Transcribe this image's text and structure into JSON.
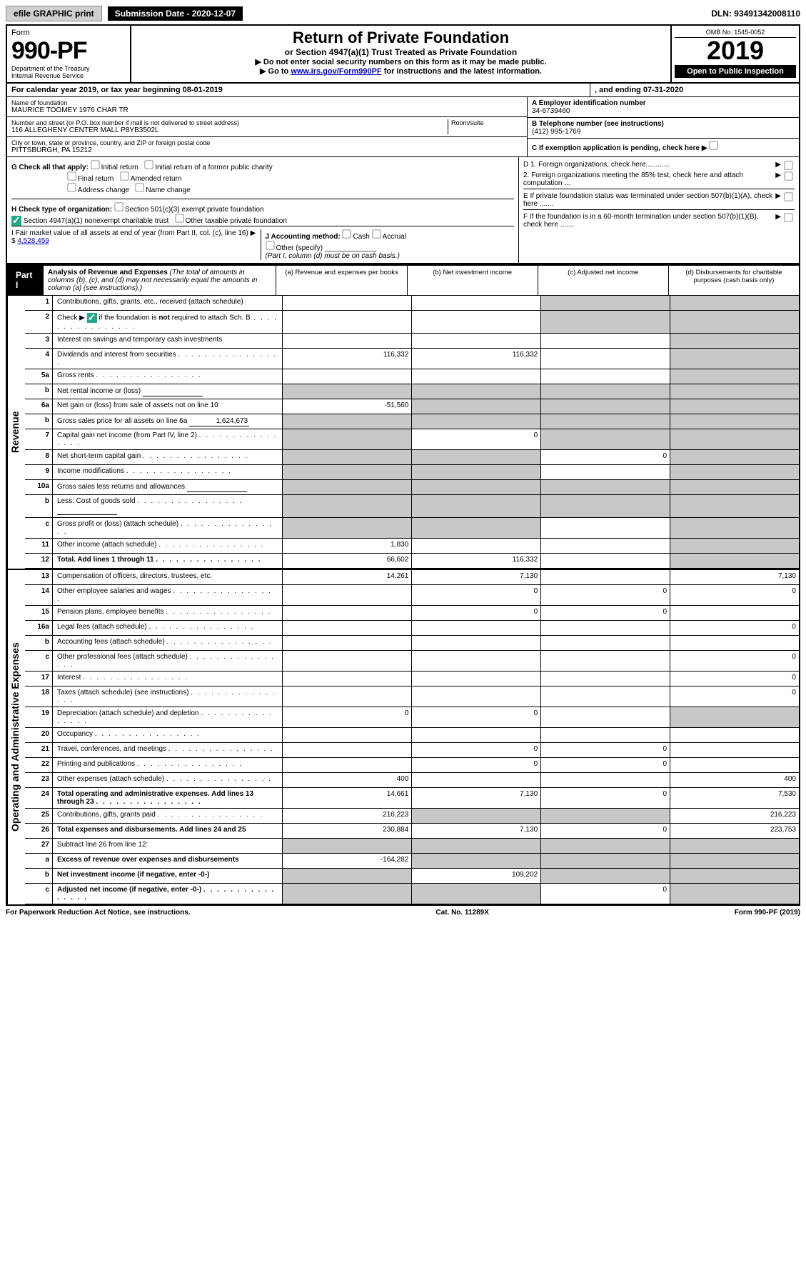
{
  "topbar": {
    "efile": "efile GRAPHIC print",
    "submission": "Submission Date - 2020-12-07",
    "dln": "DLN: 93491342008110"
  },
  "header": {
    "form_word": "Form",
    "form_num": "990-PF",
    "dept": "Department of the Treasury",
    "irs": "Internal Revenue Service",
    "title": "Return of Private Foundation",
    "subtitle": "or Section 4947(a)(1) Trust Treated as Private Foundation",
    "instr1": "▶ Do not enter social security numbers on this form as it may be made public.",
    "instr2_pre": "▶ Go to ",
    "instr2_link": "www.irs.gov/Form990PF",
    "instr2_post": " for instructions and the latest information.",
    "omb": "OMB No. 1545-0052",
    "year": "2019",
    "open": "Open to Public Inspection"
  },
  "calyear": {
    "text": "For calendar year 2019, or tax year beginning 08-01-2019",
    "end": ", and ending 07-31-2020"
  },
  "entity": {
    "name_label": "Name of foundation",
    "name": "MAURICE TOOMEY 1976 CHAR TR",
    "addr_label": "Number and street (or P.O. box number if mail is not delivered to street address)",
    "addr": "116 ALLEGHENY CENTER MALL P8YB3502L",
    "room_label": "Room/suite",
    "city_label": "City or town, state or province, country, and ZIP or foreign postal code",
    "city": "PITTSBURGH, PA 15212",
    "a_label": "A Employer identification number",
    "a_val": "34-6739460",
    "b_label": "B Telephone number (see instructions)",
    "b_val": "(412) 995-1769",
    "c_label": "C If exemption application is pending, check here ▶"
  },
  "checks": {
    "g_label": "G Check all that apply:",
    "g1": "Initial return",
    "g2": "Initial return of a former public charity",
    "g3": "Final return",
    "g4": "Amended return",
    "g5": "Address change",
    "g6": "Name change",
    "h_label": "H Check type of organization:",
    "h1": "Section 501(c)(3) exempt private foundation",
    "h2": "Section 4947(a)(1) nonexempt charitable trust",
    "h3": "Other taxable private foundation",
    "i_label": "I Fair market value of all assets at end of year (from Part II, col. (c), line 16) ▶ $",
    "i_val": "4,528,459",
    "j_label": "J Accounting method:",
    "j1": "Cash",
    "j2": "Accrual",
    "j3": "Other (specify)",
    "j_note": "(Part I, column (d) must be on cash basis.)",
    "d1": "D 1. Foreign organizations, check here............",
    "d2": "2. Foreign organizations meeting the 85% test, check here and attach computation ...",
    "e": "E If private foundation status was terminated under section 507(b)(1)(A), check here .......",
    "f": "F If the foundation is in a 60-month termination under section 507(b)(1)(B), check here ......."
  },
  "part1": {
    "label": "Part I",
    "title": "Analysis of Revenue and Expenses",
    "title_note": "(The total of amounts in columns (b), (c), and (d) may not necessarily equal the amounts in column (a) (see instructions).)",
    "col_a": "(a) Revenue and expenses per books",
    "col_b": "(b) Net investment income",
    "col_c": "(c) Adjusted net income",
    "col_d": "(d) Disbursements for charitable purposes (cash basis only)"
  },
  "side_rev": "Revenue",
  "side_exp": "Operating and Administrative Expenses",
  "rows": [
    {
      "n": "1",
      "d": "Contributions, gifts, grants, etc., received (attach schedule)",
      "a": "",
      "b": "",
      "c": "s",
      "ds": "s"
    },
    {
      "n": "2",
      "d": "Check ▶ ✔ if the foundation is not required to attach Sch. B",
      "a": "",
      "b": "",
      "c": "s",
      "ds": "s",
      "checked": true,
      "dots": true
    },
    {
      "n": "3",
      "d": "Interest on savings and temporary cash investments",
      "a": "",
      "b": "",
      "c": "",
      "ds": "s"
    },
    {
      "n": "4",
      "d": "Dividends and interest from securities",
      "a": "116,332",
      "b": "116,332",
      "c": "",
      "ds": "s",
      "dots": true
    },
    {
      "n": "5a",
      "d": "Gross rents",
      "a": "",
      "b": "",
      "c": "",
      "ds": "s",
      "dots": true
    },
    {
      "n": "b",
      "d": "Net rental income or (loss)",
      "a": "s",
      "b": "s",
      "c": "s",
      "ds": "s",
      "inline": true
    },
    {
      "n": "6a",
      "d": "Net gain or (loss) from sale of assets not on line 10",
      "a": "-51,560",
      "b": "s",
      "c": "s",
      "ds": "s"
    },
    {
      "n": "b",
      "d_pre": "Gross sales price for all assets on line 6a",
      "d_val": "1,624,673",
      "a": "s",
      "b": "s",
      "c": "s",
      "ds": "s",
      "inline": true
    },
    {
      "n": "7",
      "d": "Capital gain net income (from Part IV, line 2)",
      "a": "s",
      "b": "0",
      "c": "s",
      "ds": "s",
      "dots": true
    },
    {
      "n": "8",
      "d": "Net short-term capital gain",
      "a": "s",
      "b": "s",
      "c": "0",
      "ds": "s",
      "dots": true
    },
    {
      "n": "9",
      "d": "Income modifications",
      "a": "s",
      "b": "s",
      "c": "",
      "ds": "s",
      "dots": true
    },
    {
      "n": "10a",
      "d": "Gross sales less returns and allowances",
      "a": "s",
      "b": "s",
      "c": "s",
      "ds": "s",
      "inline": true
    },
    {
      "n": "b",
      "d": "Less: Cost of goods sold",
      "a": "s",
      "b": "s",
      "c": "s",
      "ds": "s",
      "inline": true,
      "dots": true
    },
    {
      "n": "c",
      "d": "Gross profit or (loss) (attach schedule)",
      "a": "s",
      "b": "s",
      "c": "",
      "ds": "s",
      "dots": true
    },
    {
      "n": "11",
      "d": "Other income (attach schedule)",
      "a": "1,830",
      "b": "",
      "c": "",
      "ds": "s",
      "dots": true
    },
    {
      "n": "12",
      "d": "Total. Add lines 1 through 11",
      "a": "66,602",
      "b": "116,332",
      "c": "",
      "ds": "s",
      "bold": true,
      "dots": true
    }
  ],
  "rows2": [
    {
      "n": "13",
      "d": "Compensation of officers, directors, trustees, etc.",
      "a": "14,261",
      "b": "7,130",
      "c": "",
      "ds": "7,130"
    },
    {
      "n": "14",
      "d": "Other employee salaries and wages",
      "a": "",
      "b": "0",
      "c": "0",
      "ds": "0",
      "dots": true
    },
    {
      "n": "15",
      "d": "Pension plans, employee benefits",
      "a": "",
      "b": "0",
      "c": "0",
      "ds": "",
      "dots": true
    },
    {
      "n": "16a",
      "d": "Legal fees (attach schedule)",
      "a": "",
      "b": "",
      "c": "",
      "ds": "0",
      "dots": true
    },
    {
      "n": "b",
      "d": "Accounting fees (attach schedule)",
      "a": "",
      "b": "",
      "c": "",
      "ds": "",
      "dots": true
    },
    {
      "n": "c",
      "d": "Other professional fees (attach schedule)",
      "a": "",
      "b": "",
      "c": "",
      "ds": "0",
      "dots": true
    },
    {
      "n": "17",
      "d": "Interest",
      "a": "",
      "b": "",
      "c": "",
      "ds": "0",
      "dots": true
    },
    {
      "n": "18",
      "d": "Taxes (attach schedule) (see instructions)",
      "a": "",
      "b": "",
      "c": "",
      "ds": "0",
      "dots": true
    },
    {
      "n": "19",
      "d": "Depreciation (attach schedule) and depletion",
      "a": "0",
      "b": "0",
      "c": "",
      "ds": "s",
      "dots": true
    },
    {
      "n": "20",
      "d": "Occupancy",
      "a": "",
      "b": "",
      "c": "",
      "ds": "",
      "dots": true
    },
    {
      "n": "21",
      "d": "Travel, conferences, and meetings",
      "a": "",
      "b": "0",
      "c": "0",
      "ds": "",
      "dots": true
    },
    {
      "n": "22",
      "d": "Printing and publications",
      "a": "",
      "b": "0",
      "c": "0",
      "ds": "",
      "dots": true
    },
    {
      "n": "23",
      "d": "Other expenses (attach schedule)",
      "a": "400",
      "b": "",
      "c": "",
      "ds": "400",
      "dots": true
    },
    {
      "n": "24",
      "d": "Total operating and administrative expenses. Add lines 13 through 23",
      "a": "14,661",
      "b": "7,130",
      "c": "0",
      "ds": "7,530",
      "bold": true,
      "dots": true
    },
    {
      "n": "25",
      "d": "Contributions, gifts, grants paid",
      "a": "216,223",
      "b": "s",
      "c": "s",
      "ds": "216,223",
      "dots": true
    },
    {
      "n": "26",
      "d": "Total expenses and disbursements. Add lines 24 and 25",
      "a": "230,884",
      "b": "7,130",
      "c": "0",
      "ds": "223,753",
      "bold": true
    },
    {
      "n": "27",
      "d": "Subtract line 26 from line 12:",
      "a": "s",
      "b": "s",
      "c": "s",
      "ds": "s"
    },
    {
      "n": "a",
      "d": "Excess of revenue over expenses and disbursements",
      "a": "-164,282",
      "b": "s",
      "c": "s",
      "ds": "s",
      "bold": true
    },
    {
      "n": "b",
      "d": "Net investment income (if negative, enter -0-)",
      "a": "s",
      "b": "109,202",
      "c": "s",
      "ds": "s",
      "bold": true
    },
    {
      "n": "c",
      "d": "Adjusted net income (if negative, enter -0-)",
      "a": "s",
      "b": "s",
      "c": "0",
      "ds": "s",
      "bold": true,
      "dots": true
    }
  ],
  "footer": {
    "left": "For Paperwork Reduction Act Notice, see instructions.",
    "mid": "Cat. No. 11289X",
    "right": "Form 990-PF (2019)"
  }
}
